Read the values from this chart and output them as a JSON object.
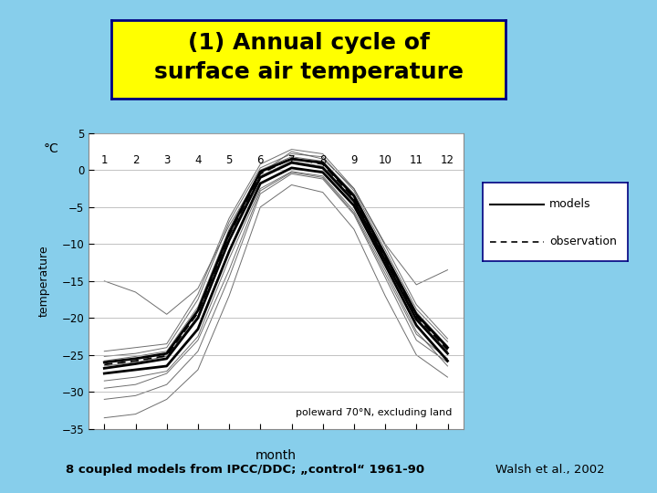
{
  "background_color": "#87CEEB",
  "title_text": "(1) Annual cycle of\nsurface air temperature",
  "title_bg": "#FFFF00",
  "title_fontsize": 18,
  "plot_bg": "#FFFFFF",
  "ylabel_top": "°C",
  "ylabel_bottom": "temperature",
  "xlabel": "month",
  "ylim": [
    -35,
    5
  ],
  "xlim": [
    0.5,
    12.5
  ],
  "yticks": [
    5,
    0,
    -5,
    -10,
    -15,
    -20,
    -25,
    -30,
    -35
  ],
  "xticks": [
    1,
    2,
    3,
    4,
    5,
    6,
    7,
    8,
    9,
    10,
    11,
    12
  ],
  "annotation": "poleward 70°N, excluding land",
  "footer_left": "8 coupled models from IPCC/DDC; „control“ 1961-90",
  "footer_right": "Walsh et al., 2002",
  "legend_models": "models",
  "legend_obs": "observation",
  "months": [
    1,
    2,
    3,
    4,
    5,
    6,
    7,
    8,
    9,
    10,
    11,
    12
  ],
  "model_lines": [
    [
      -26.0,
      -25.5,
      -24.8,
      -19.0,
      -8.5,
      -0.2,
      1.5,
      1.0,
      -3.5,
      -11.5,
      -19.5,
      -24.0
    ],
    [
      -26.8,
      -26.2,
      -25.5,
      -20.0,
      -9.5,
      -1.0,
      1.0,
      0.3,
      -4.2,
      -12.2,
      -20.2,
      -24.8
    ],
    [
      -25.2,
      -24.8,
      -24.0,
      -17.5,
      -7.0,
      0.3,
      2.2,
      1.8,
      -2.8,
      -10.8,
      -18.8,
      -23.2
    ],
    [
      -27.5,
      -27.0,
      -26.5,
      -21.5,
      -11.0,
      -1.8,
      0.3,
      -0.3,
      -4.8,
      -12.8,
      -21.0,
      -25.8
    ],
    [
      -25.8,
      -25.2,
      -24.5,
      -18.5,
      -8.0,
      0.0,
      1.8,
      1.2,
      -3.2,
      -11.2,
      -19.2,
      -23.8
    ],
    [
      -26.5,
      -26.0,
      -25.2,
      -19.8,
      -9.0,
      -0.8,
      1.2,
      0.5,
      -4.0,
      -12.0,
      -20.0,
      -24.5
    ],
    [
      -24.5,
      -24.0,
      -23.5,
      -16.8,
      -6.5,
      0.8,
      2.8,
      2.2,
      -2.5,
      -10.2,
      -18.2,
      -22.8
    ],
    [
      -28.5,
      -28.0,
      -27.2,
      -22.5,
      -12.0,
      -2.5,
      -0.2,
      -0.8,
      -5.5,
      -13.5,
      -21.8,
      -26.5
    ],
    [
      -15.0,
      -16.5,
      -19.5,
      -16.0,
      -7.5,
      -0.5,
      2.5,
      1.5,
      -2.5,
      -10.0,
      -15.5,
      -13.5
    ],
    [
      -31.0,
      -30.5,
      -29.0,
      -24.5,
      -14.5,
      -3.2,
      -0.5,
      -1.2,
      -6.0,
      -14.5,
      -23.0,
      -26.0
    ],
    [
      -29.5,
      -29.0,
      -27.5,
      -23.0,
      -13.5,
      -2.8,
      -0.3,
      -1.0,
      -5.8,
      -14.0,
      -22.2,
      -25.5
    ],
    [
      -33.5,
      -33.0,
      -31.0,
      -27.0,
      -17.0,
      -5.0,
      -2.0,
      -3.0,
      -8.0,
      -17.0,
      -25.0,
      -28.0
    ]
  ],
  "thick_model_lines": [
    [
      -26.0,
      -25.5,
      -24.8,
      -19.0,
      -8.5,
      -0.2,
      1.5,
      1.0,
      -3.5,
      -11.5,
      -19.5,
      -24.0
    ],
    [
      -26.8,
      -26.2,
      -25.5,
      -20.0,
      -9.5,
      -1.0,
      1.0,
      0.3,
      -4.2,
      -12.2,
      -20.2,
      -24.8
    ],
    [
      -27.5,
      -27.0,
      -26.5,
      -21.5,
      -11.0,
      -1.8,
      0.3,
      -0.3,
      -4.8,
      -12.8,
      -21.0,
      -25.8
    ]
  ],
  "obs_line": [
    -26.3,
    -25.8,
    -25.1,
    -19.3,
    -8.8,
    -0.5,
    1.6,
    0.8,
    -3.8,
    -11.8,
    -19.8,
    -24.3
  ]
}
